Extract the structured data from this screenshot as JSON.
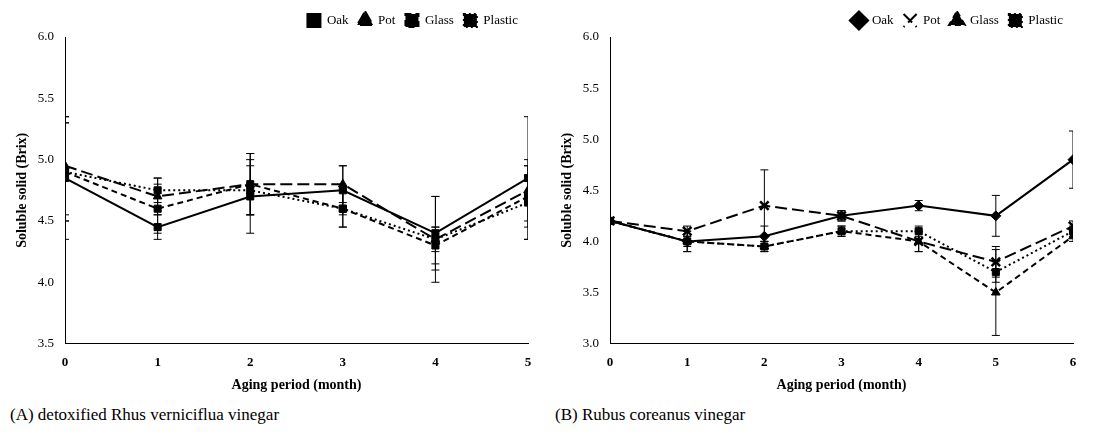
{
  "chart_data": [
    {
      "type": "line",
      "caption": "(A) detoxified Rhus verniciflua vinegar",
      "x_label": "Aging period (month)",
      "y_label": "Soluble solid (Brix)",
      "x": [
        0,
        1,
        2,
        3,
        4,
        5
      ],
      "xlim": [
        0,
        5
      ],
      "xticks": [
        0,
        1,
        2,
        3,
        4,
        5
      ],
      "ylim": [
        3.5,
        6.0
      ],
      "yticks": [
        3.5,
        {
          "value": 4.0,
          "label": "4.0"
        },
        4.5,
        {
          "value": 5.0,
          "label": "5.0"
        },
        5.5,
        {
          "value": 6.0,
          "label": "6.0"
        }
      ],
      "grid": false,
      "legend": "upper right",
      "series": [
        {
          "name": "Oak",
          "color": "#000000",
          "marker": "square",
          "line_style": "solid",
          "values": [
            4.85,
            4.45,
            4.7,
            4.75,
            4.4,
            4.85
          ],
          "errors": [
            0.5,
            0.1,
            0.3,
            0.2,
            0.3,
            0.5
          ]
        },
        {
          "name": "Pot",
          "color": "#000000",
          "marker": "triangle",
          "line_style": "long_dash",
          "values": [
            4.95,
            4.7,
            4.8,
            4.8,
            4.35,
            4.75
          ],
          "errors": [
            0.4,
            0.15,
            0.25,
            0.15,
            0.35,
            0.25
          ]
        },
        {
          "name": "Glass",
          "color": "#000000",
          "marker": "square",
          "line_style": "dashed",
          "values": [
            4.9,
            4.6,
            4.8,
            4.6,
            4.3,
            4.7
          ],
          "errors": [
            0.4,
            0.2,
            0.25,
            0.15,
            0.15,
            0.25
          ]
        },
        {
          "name": "Plastic",
          "color": "#000000",
          "marker": "square",
          "line_style": "dotted",
          "values": [
            4.9,
            4.75,
            4.75,
            4.6,
            4.35,
            4.65
          ],
          "errors": [
            0.4,
            0.1,
            0.2,
            0.15,
            0.1,
            0.3
          ]
        }
      ]
    },
    {
      "type": "line",
      "caption": "(B) Rubus coreanus vinegar",
      "x_label": "Aging period (month)",
      "y_label": "Soluble solid (Brix)",
      "x": [
        0,
        1,
        2,
        3,
        4,
        5,
        6
      ],
      "xlim": [
        0,
        6
      ],
      "xticks": [
        0,
        1,
        2,
        3,
        4,
        5,
        6
      ],
      "ylim": [
        3.0,
        6.0
      ],
      "yticks": [
        {
          "value": 3.0,
          "label": "3.0"
        },
        3.5,
        {
          "value": 4.0,
          "label": "4.0"
        },
        4.5,
        {
          "value": 5.0,
          "label": "5.0"
        },
        5.5,
        {
          "value": 6.0,
          "label": "6.0"
        }
      ],
      "grid": false,
      "legend": "upper right",
      "series": [
        {
          "name": "Oak",
          "color": "#000000",
          "marker": "diamond",
          "line_style": "solid",
          "values": [
            4.2,
            4.0,
            4.05,
            4.25,
            4.35,
            4.25,
            4.8
          ],
          "errors": [
            0,
            0.1,
            0.1,
            0.05,
            0.05,
            0.2,
            0.28
          ]
        },
        {
          "name": "Pot",
          "color": "#000000",
          "marker": "x",
          "line_style": "long_dash",
          "values": [
            4.2,
            4.1,
            4.35,
            4.25,
            4.0,
            3.8,
            4.15
          ],
          "errors": [
            0,
            0.05,
            0.35,
            0.05,
            0.1,
            0.15,
            0.05
          ]
        },
        {
          "name": "Glass",
          "color": "#000000",
          "marker": "triangle",
          "line_style": "dashed",
          "values": [
            4.2,
            4.0,
            3.95,
            4.1,
            4.0,
            3.5,
            4.05
          ],
          "errors": [
            0,
            0.1,
            0.05,
            0.05,
            0.1,
            0.42,
            0.05
          ]
        },
        {
          "name": "Plastic",
          "color": "#000000",
          "marker": "square",
          "line_style": "dotted",
          "values": [
            4.2,
            4.0,
            3.95,
            4.1,
            4.1,
            3.7,
            4.1
          ],
          "errors": [
            0,
            0.05,
            0.05,
            0.05,
            0.05,
            0.1,
            0.05
          ]
        }
      ]
    }
  ]
}
